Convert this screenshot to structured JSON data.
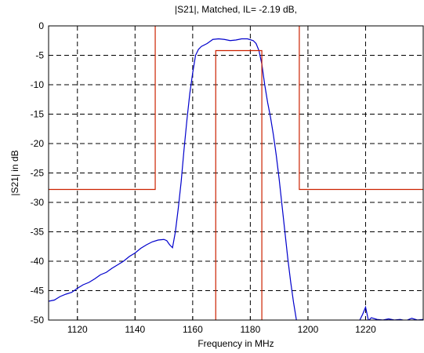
{
  "chart_data": {
    "type": "line",
    "title": "|S21|, Matched, IL= -2.19 dB,",
    "xlabel": "Frequency in MHz",
    "ylabel": "|S21| in dB",
    "xlim": [
      1110,
      1240
    ],
    "ylim": [
      -50,
      0
    ],
    "xticks": [
      1120,
      1140,
      1160,
      1180,
      1200,
      1220
    ],
    "yticks": [
      0,
      -5,
      -10,
      -15,
      -20,
      -25,
      -30,
      -35,
      -40,
      -45,
      -50
    ],
    "grid": true,
    "grid_style": "dashed",
    "series": [
      {
        "color": "#0000cc",
        "points": [
          [
            1110,
            -46.8
          ],
          [
            1112,
            -46.6
          ],
          [
            1114,
            -46.0
          ],
          [
            1116,
            -45.6
          ],
          [
            1118,
            -45.3
          ],
          [
            1120,
            -44.6
          ],
          [
            1122,
            -44.0
          ],
          [
            1124,
            -43.6
          ],
          [
            1126,
            -43.0
          ],
          [
            1128,
            -42.3
          ],
          [
            1130,
            -41.9
          ],
          [
            1132,
            -41.2
          ],
          [
            1134,
            -40.6
          ],
          [
            1136,
            -40.0
          ],
          [
            1138,
            -39.2
          ],
          [
            1140,
            -38.6
          ],
          [
            1142,
            -37.8
          ],
          [
            1144,
            -37.2
          ],
          [
            1146,
            -36.7
          ],
          [
            1148,
            -36.4
          ],
          [
            1150,
            -36.3
          ],
          [
            1151,
            -36.5
          ],
          [
            1152,
            -37.2
          ],
          [
            1153,
            -37.7
          ],
          [
            1154,
            -35.0
          ],
          [
            1155,
            -31.0
          ],
          [
            1156,
            -26.5
          ],
          [
            1157,
            -21.0
          ],
          [
            1158,
            -16.0
          ],
          [
            1159,
            -11.5
          ],
          [
            1160,
            -8.0
          ],
          [
            1161,
            -5.0
          ],
          [
            1162,
            -4.0
          ],
          [
            1163,
            -3.5
          ],
          [
            1165,
            -3.0
          ],
          [
            1167,
            -2.3
          ],
          [
            1169,
            -2.2
          ],
          [
            1171,
            -2.3
          ],
          [
            1173,
            -2.5
          ],
          [
            1175,
            -2.4
          ],
          [
            1177,
            -2.2
          ],
          [
            1179,
            -2.2
          ],
          [
            1181,
            -2.5
          ],
          [
            1182,
            -3.0
          ],
          [
            1183,
            -4.2
          ],
          [
            1184,
            -6.5
          ],
          [
            1185,
            -10.0
          ],
          [
            1186,
            -13.0
          ],
          [
            1187,
            -15.5
          ],
          [
            1188,
            -18.5
          ],
          [
            1189,
            -22.0
          ],
          [
            1190,
            -26.0
          ],
          [
            1191,
            -30.5
          ],
          [
            1192,
            -35.0
          ],
          [
            1193,
            -39.5
          ],
          [
            1194,
            -43.5
          ],
          [
            1195,
            -47.0
          ],
          [
            1196,
            -50.0
          ],
          [
            1200,
            -50.2
          ],
          [
            1210,
            -50.2
          ],
          [
            1218,
            -50.0
          ],
          [
            1219,
            -49.0
          ],
          [
            1220,
            -47.8
          ],
          [
            1221,
            -50.1
          ],
          [
            1222,
            -49.6
          ],
          [
            1224,
            -49.9
          ],
          [
            1226,
            -50.0
          ],
          [
            1228,
            -49.8
          ],
          [
            1230,
            -50.0
          ],
          [
            1232,
            -49.9
          ],
          [
            1234,
            -50.1
          ],
          [
            1236,
            -49.7
          ],
          [
            1238,
            -50.0
          ],
          [
            1240,
            -49.9
          ]
        ]
      },
      {
        "color": "#cc2200",
        "points": [
          [
            1110,
            -27.8
          ],
          [
            1147,
            -27.8
          ],
          [
            1147,
            0
          ]
        ]
      },
      {
        "color": "#cc2200",
        "points": [
          [
            1197,
            0
          ],
          [
            1197,
            -27.8
          ],
          [
            1240,
            -27.8
          ]
        ]
      },
      {
        "color": "#cc2200",
        "points": [
          [
            1168,
            -50
          ],
          [
            1168,
            -4.2
          ],
          [
            1184,
            -4.2
          ],
          [
            1184,
            -50
          ]
        ]
      }
    ]
  }
}
